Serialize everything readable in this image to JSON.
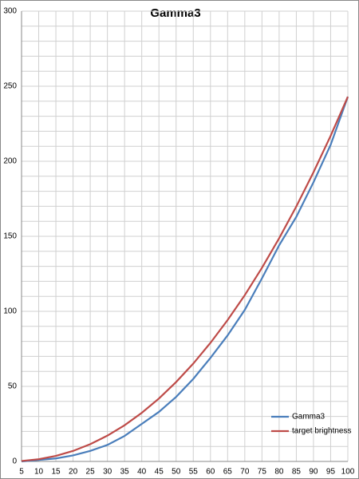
{
  "chart_data": {
    "type": "line",
    "title": "Gamma3",
    "x": [
      5,
      10,
      15,
      20,
      25,
      30,
      35,
      40,
      45,
      50,
      55,
      60,
      65,
      70,
      75,
      80,
      85,
      90,
      95,
      100
    ],
    "series": [
      {
        "name": "Gamma3",
        "color": "#4a7ebb",
        "values": [
          0,
          1,
          2,
          4,
          7,
          11,
          17,
          25,
          33,
          43,
          55,
          69,
          84,
          101,
          122,
          144,
          163,
          186,
          211,
          243
        ]
      },
      {
        "name": "target brightness",
        "color": "#be4b48",
        "values": [
          0.3,
          1.5,
          3.7,
          7,
          11.5,
          17.2,
          24.1,
          32.4,
          41.9,
          52.9,
          65.2,
          79,
          94.2,
          110.8,
          129,
          148.7,
          169.9,
          192.7,
          217,
          243
        ]
      }
    ],
    "xlim": [
      5,
      100
    ],
    "xticks": [
      5,
      10,
      15,
      20,
      25,
      30,
      35,
      40,
      45,
      50,
      55,
      60,
      65,
      70,
      75,
      80,
      85,
      90,
      95,
      100
    ],
    "ylim": [
      0,
      300
    ],
    "yticks": [
      0,
      50,
      100,
      150,
      200,
      250,
      300
    ],
    "ygridticks": [
      0,
      10,
      20,
      30,
      40,
      50,
      60,
      70,
      80,
      90,
      100,
      110,
      120,
      130,
      140,
      150,
      160,
      170,
      180,
      190,
      200,
      210,
      220,
      230,
      240,
      250,
      260,
      270,
      280,
      290,
      300
    ],
    "grid": true,
    "legend": "lower right"
  }
}
